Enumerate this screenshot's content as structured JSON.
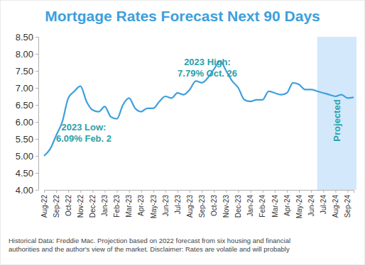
{
  "chart_data": {
    "type": "line",
    "title": "Mortgage Rates Forecast Next 90 Days",
    "categories": [
      "Aug-22",
      null,
      "Sep-22",
      null,
      "Oct-22",
      null,
      "Nov-22",
      null,
      "Dec-22",
      null,
      "Jan-23",
      null,
      "Feb-23",
      null,
      "Mar-23",
      null,
      "Apr-23",
      null,
      "May-23",
      null,
      "Jun-23",
      null,
      "Jul-23",
      null,
      "Aug-23",
      null,
      "Sep-23",
      null,
      "Oct-23",
      null,
      "Nov-23",
      null,
      "Dec-23",
      null,
      "Jan-24",
      null,
      "Feb-24",
      null,
      "Mar-24",
      null,
      "Apr-24",
      null,
      "May-24",
      null,
      "Jun-24",
      null,
      "Jul-24",
      null,
      "Aug-24",
      null,
      "Sep-24",
      null
    ],
    "values": [
      5.0,
      5.2,
      5.6,
      6.0,
      6.7,
      6.9,
      7.05,
      6.6,
      6.35,
      6.3,
      6.45,
      6.15,
      6.09,
      6.5,
      6.7,
      6.4,
      6.3,
      6.4,
      6.4,
      6.6,
      6.75,
      6.7,
      6.85,
      6.8,
      6.95,
      7.2,
      7.15,
      7.3,
      7.55,
      7.79,
      7.5,
      7.2,
      7.0,
      6.65,
      6.6,
      6.65,
      6.65,
      6.9,
      6.85,
      6.8,
      6.85,
      7.15,
      7.1,
      6.95,
      6.95,
      6.9,
      6.85,
      6.8,
      6.75,
      6.8,
      6.7,
      6.72
    ],
    "color": "#3d9fdc",
    "ylim": [
      4.0,
      8.5
    ],
    "yticks": [
      {
        "value": 4.0,
        "label": "4.00"
      },
      {
        "value": 4.5,
        "label": "4.50"
      },
      {
        "value": 5.0,
        "label": "5.00"
      },
      {
        "value": 5.5,
        "label": "5.50"
      },
      {
        "value": 6.0,
        "label": "6.00"
      },
      {
        "value": 6.5,
        "label": "6.50"
      },
      {
        "value": 7.0,
        "label": "7.00"
      },
      {
        "value": 7.5,
        "label": "7.50"
      },
      {
        "value": 8.0,
        "label": "8.00"
      },
      {
        "value": 8.5,
        "label": "8.50"
      }
    ],
    "grid": false,
    "shaded_region": {
      "label": "Projected",
      "from": "Jul-24"
    },
    "annotations": [
      {
        "lines": [
          "2023 High:",
          "7.79% Oct. 26"
        ]
      },
      {
        "lines": [
          "2023 Low:",
          "6.09% Feb. 2"
        ]
      }
    ],
    "footnote": [
      "Historical Data: Freddie Mac. Projection based on 2022 forecast from six housing and financial",
      "authorities and the author's view of the market. Disclaimer: Rates are volatile and will probably"
    ]
  }
}
